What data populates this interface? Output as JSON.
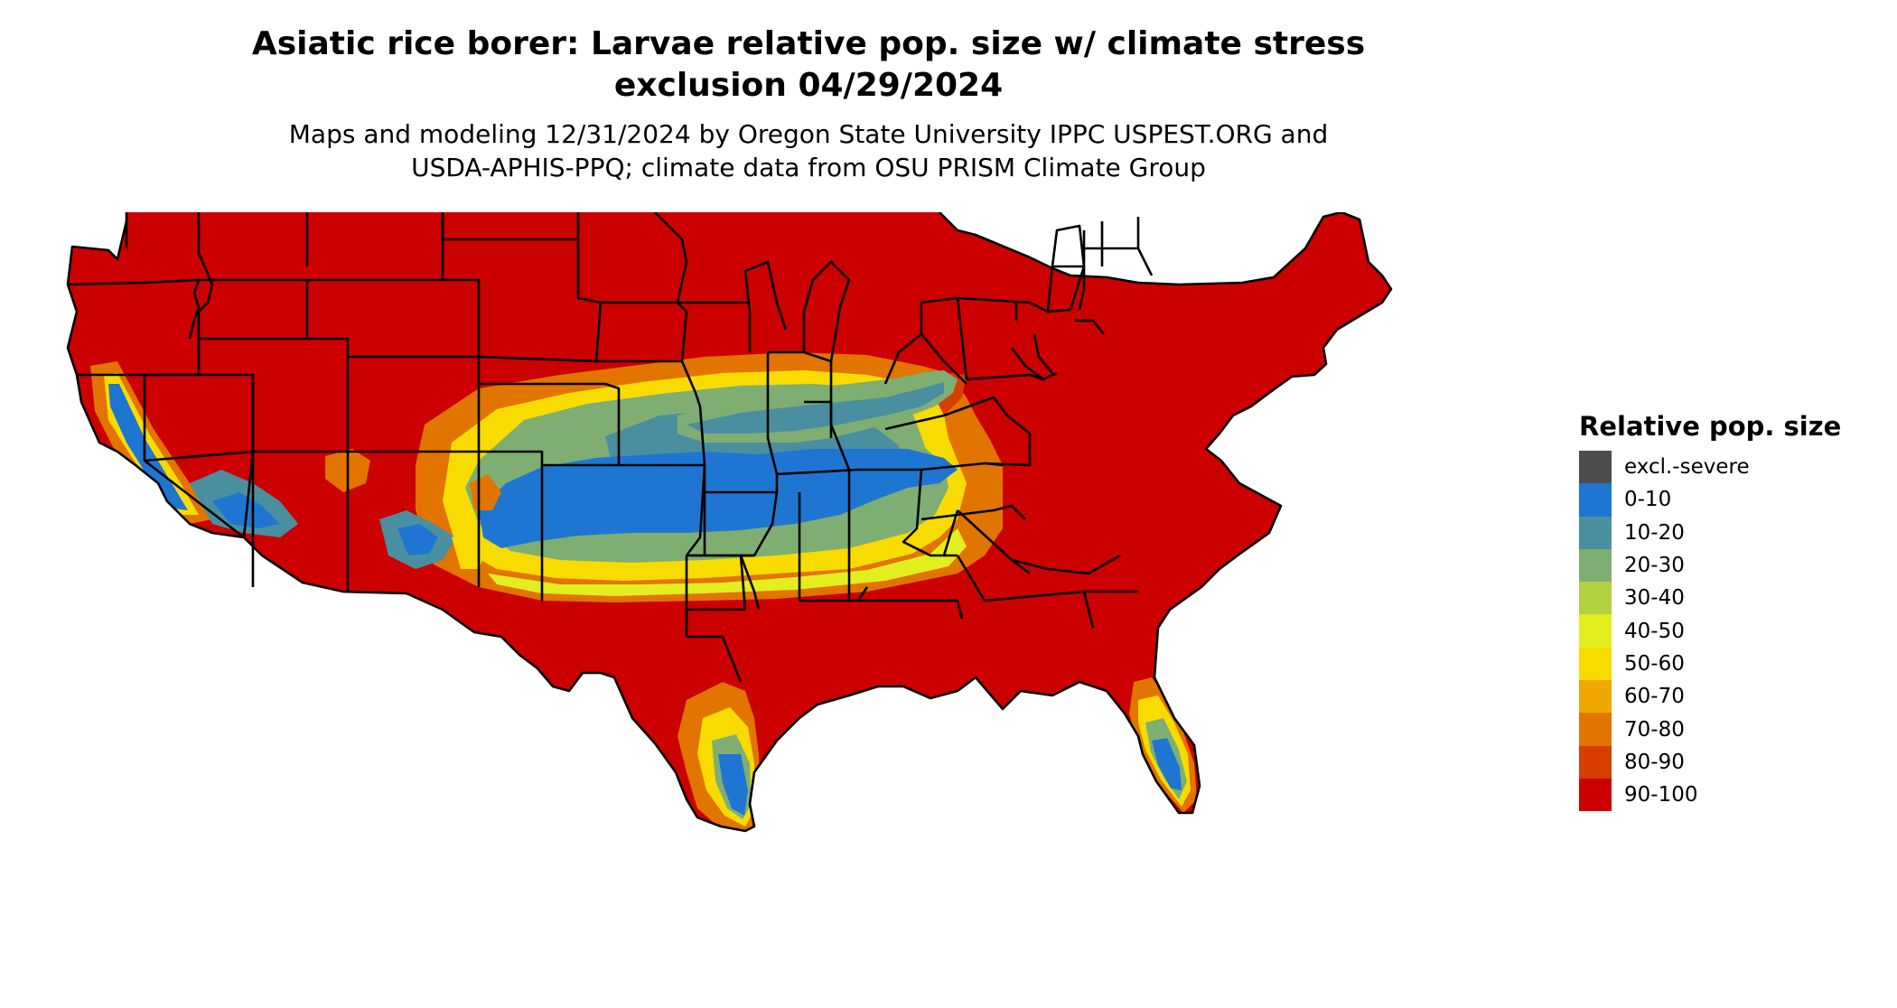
{
  "title_line1": "Asiatic rice borer: Larvae relative pop. size w/ climate stress",
  "title_line2": "exclusion 04/29/2024",
  "subtitle_line1": "Maps and modeling 12/31/2024 by Oregon State University IPPC USPEST.ORG and",
  "subtitle_line2": "USDA-APHIS-PPQ; climate data from OSU PRISM Climate Group",
  "legend": {
    "title": "Relative pop. size",
    "items": [
      {
        "label": "excl.-severe",
        "color": "#4d4d4d"
      },
      {
        "label": "0-10",
        "color": "#1e76d2"
      },
      {
        "label": "10-20",
        "color": "#4a8fa0"
      },
      {
        "label": "20-30",
        "color": "#7fae72"
      },
      {
        "label": "30-40",
        "color": "#b2d13f"
      },
      {
        "label": "40-50",
        "color": "#e3ee1e"
      },
      {
        "label": "50-60",
        "color": "#f8dc00"
      },
      {
        "label": "60-70",
        "color": "#f0a800"
      },
      {
        "label": "70-80",
        "color": "#e27400"
      },
      {
        "label": "80-90",
        "color": "#d83e00"
      },
      {
        "label": "90-100",
        "color": "#cc0000"
      }
    ]
  },
  "map": {
    "region": "Contiguous United States",
    "boundary_color": "#000000"
  }
}
